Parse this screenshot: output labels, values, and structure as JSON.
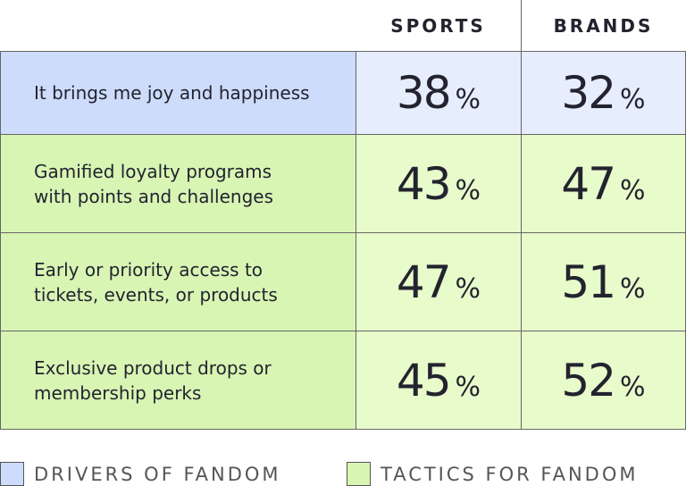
{
  "table": {
    "columns": [
      "SPORTS",
      "BRANDS"
    ],
    "unit": "%",
    "rows": [
      {
        "group": "drivers",
        "label_lines": [
          "It brings me joy and happiness"
        ],
        "values": [
          38,
          32
        ]
      },
      {
        "group": "tactics",
        "label_lines": [
          "Gamified loyalty programs",
          "with points and challenges"
        ],
        "values": [
          43,
          47
        ]
      },
      {
        "group": "tactics",
        "label_lines": [
          "Early or priority access to",
          "tickets, events, or products"
        ],
        "values": [
          47,
          51
        ]
      },
      {
        "group": "tactics",
        "label_lines": [
          "Exclusive product drops or",
          "membership perks"
        ],
        "values": [
          45,
          52
        ]
      }
    ]
  },
  "legend": [
    {
      "key": "drivers",
      "label": "DRIVERS OF FANDOM",
      "color": "#cddcfb",
      "cell_color": "#e6edfd"
    },
    {
      "key": "tactics",
      "label": "TACTICS FOR FANDOM",
      "color": "#d8f5b4",
      "cell_color": "#e8fbcb"
    }
  ]
}
